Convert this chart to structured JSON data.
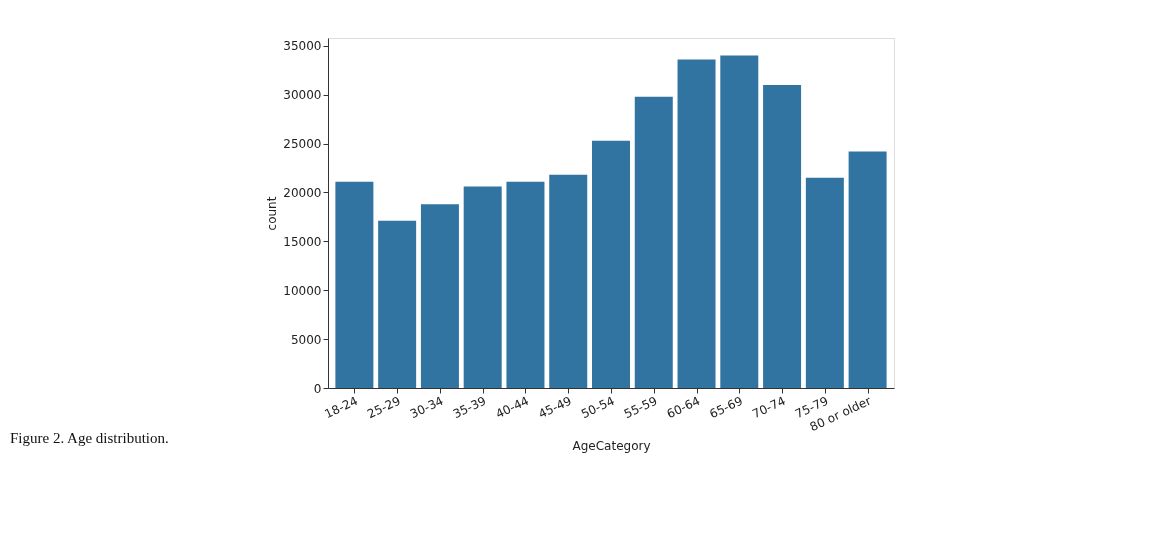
{
  "chart_data": {
    "type": "bar",
    "xlabel": "AgeCategory",
    "ylabel": "count",
    "categories": [
      "18-24",
      "25-29",
      "30-34",
      "35-39",
      "40-44",
      "45-49",
      "50-54",
      "55-59",
      "60-64",
      "65-69",
      "70-74",
      "75-79",
      "80 or older"
    ],
    "values": [
      21100,
      17100,
      18800,
      20600,
      21100,
      21800,
      25300,
      29800,
      33600,
      34000,
      31000,
      21500,
      24200
    ],
    "color": "#3274a1",
    "ylim": [
      0,
      35800
    ],
    "yticks": [
      0,
      5000,
      10000,
      15000,
      20000,
      25000,
      30000,
      35000
    ],
    "grid": false,
    "annotations": [
      "Figure 2. Age distribution."
    ]
  }
}
